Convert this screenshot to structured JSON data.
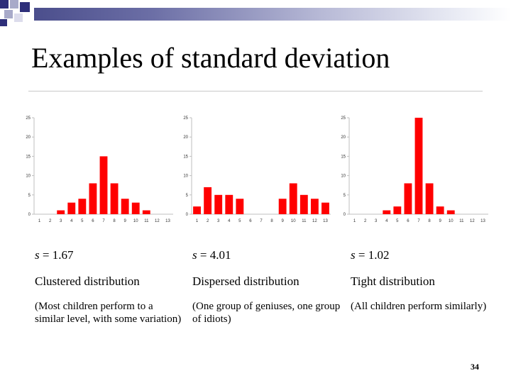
{
  "slide": {
    "title": "Examples of standard deviation",
    "page_number": "34",
    "accent_colors": {
      "band_dark": "#4b4e8c",
      "square_blue": "#2e2f7a",
      "square_light": "#a8aac9"
    }
  },
  "columns": [
    {
      "stat_var": "s",
      "stat_value": "= 1.67",
      "label": "Clustered distribution",
      "note": "(Most children perform to a similar level, with some variation)"
    },
    {
      "stat_var": "s",
      "stat_value": "= 4.01",
      "label": "Dispersed distribution",
      "note": "(One group of geniuses, one group of idiots)"
    },
    {
      "stat_var": "s",
      "stat_value": "= 1.02",
      "label": "Tight distribution",
      "note": "(All children perform similarly)"
    }
  ],
  "chart_data": [
    {
      "type": "bar",
      "bar_color": "#ff0000",
      "categories": [
        "1",
        "2",
        "3",
        "4",
        "5",
        "6",
        "7",
        "8",
        "9",
        "10",
        "11",
        "12",
        "13"
      ],
      "values": [
        0,
        0,
        1,
        3,
        4,
        8,
        15,
        8,
        4,
        3,
        1,
        0,
        0
      ],
      "y_ticks": [
        "0",
        "5",
        "10",
        "15",
        "20",
        "25"
      ],
      "ylim": [
        0,
        25
      ]
    },
    {
      "type": "bar",
      "bar_color": "#ff0000",
      "categories": [
        "1",
        "2",
        "3",
        "4",
        "5",
        "6",
        "7",
        "8",
        "9",
        "10",
        "11",
        "12",
        "13"
      ],
      "values": [
        2,
        7,
        5,
        5,
        4,
        0,
        0,
        0,
        4,
        8,
        5,
        4,
        3
      ],
      "y_ticks": [
        "0",
        "5",
        "10",
        "15",
        "20",
        "25"
      ],
      "ylim": [
        0,
        25
      ]
    },
    {
      "type": "bar",
      "bar_color": "#ff0000",
      "categories": [
        "1",
        "2",
        "3",
        "4",
        "5",
        "6",
        "7",
        "8",
        "9",
        "10",
        "11",
        "12",
        "13"
      ],
      "values": [
        0,
        0,
        0,
        1,
        2,
        8,
        25,
        8,
        2,
        1,
        0,
        0,
        0
      ],
      "y_ticks": [
        "0",
        "5",
        "10",
        "15",
        "20",
        "25"
      ],
      "ylim": [
        0,
        25
      ]
    }
  ]
}
